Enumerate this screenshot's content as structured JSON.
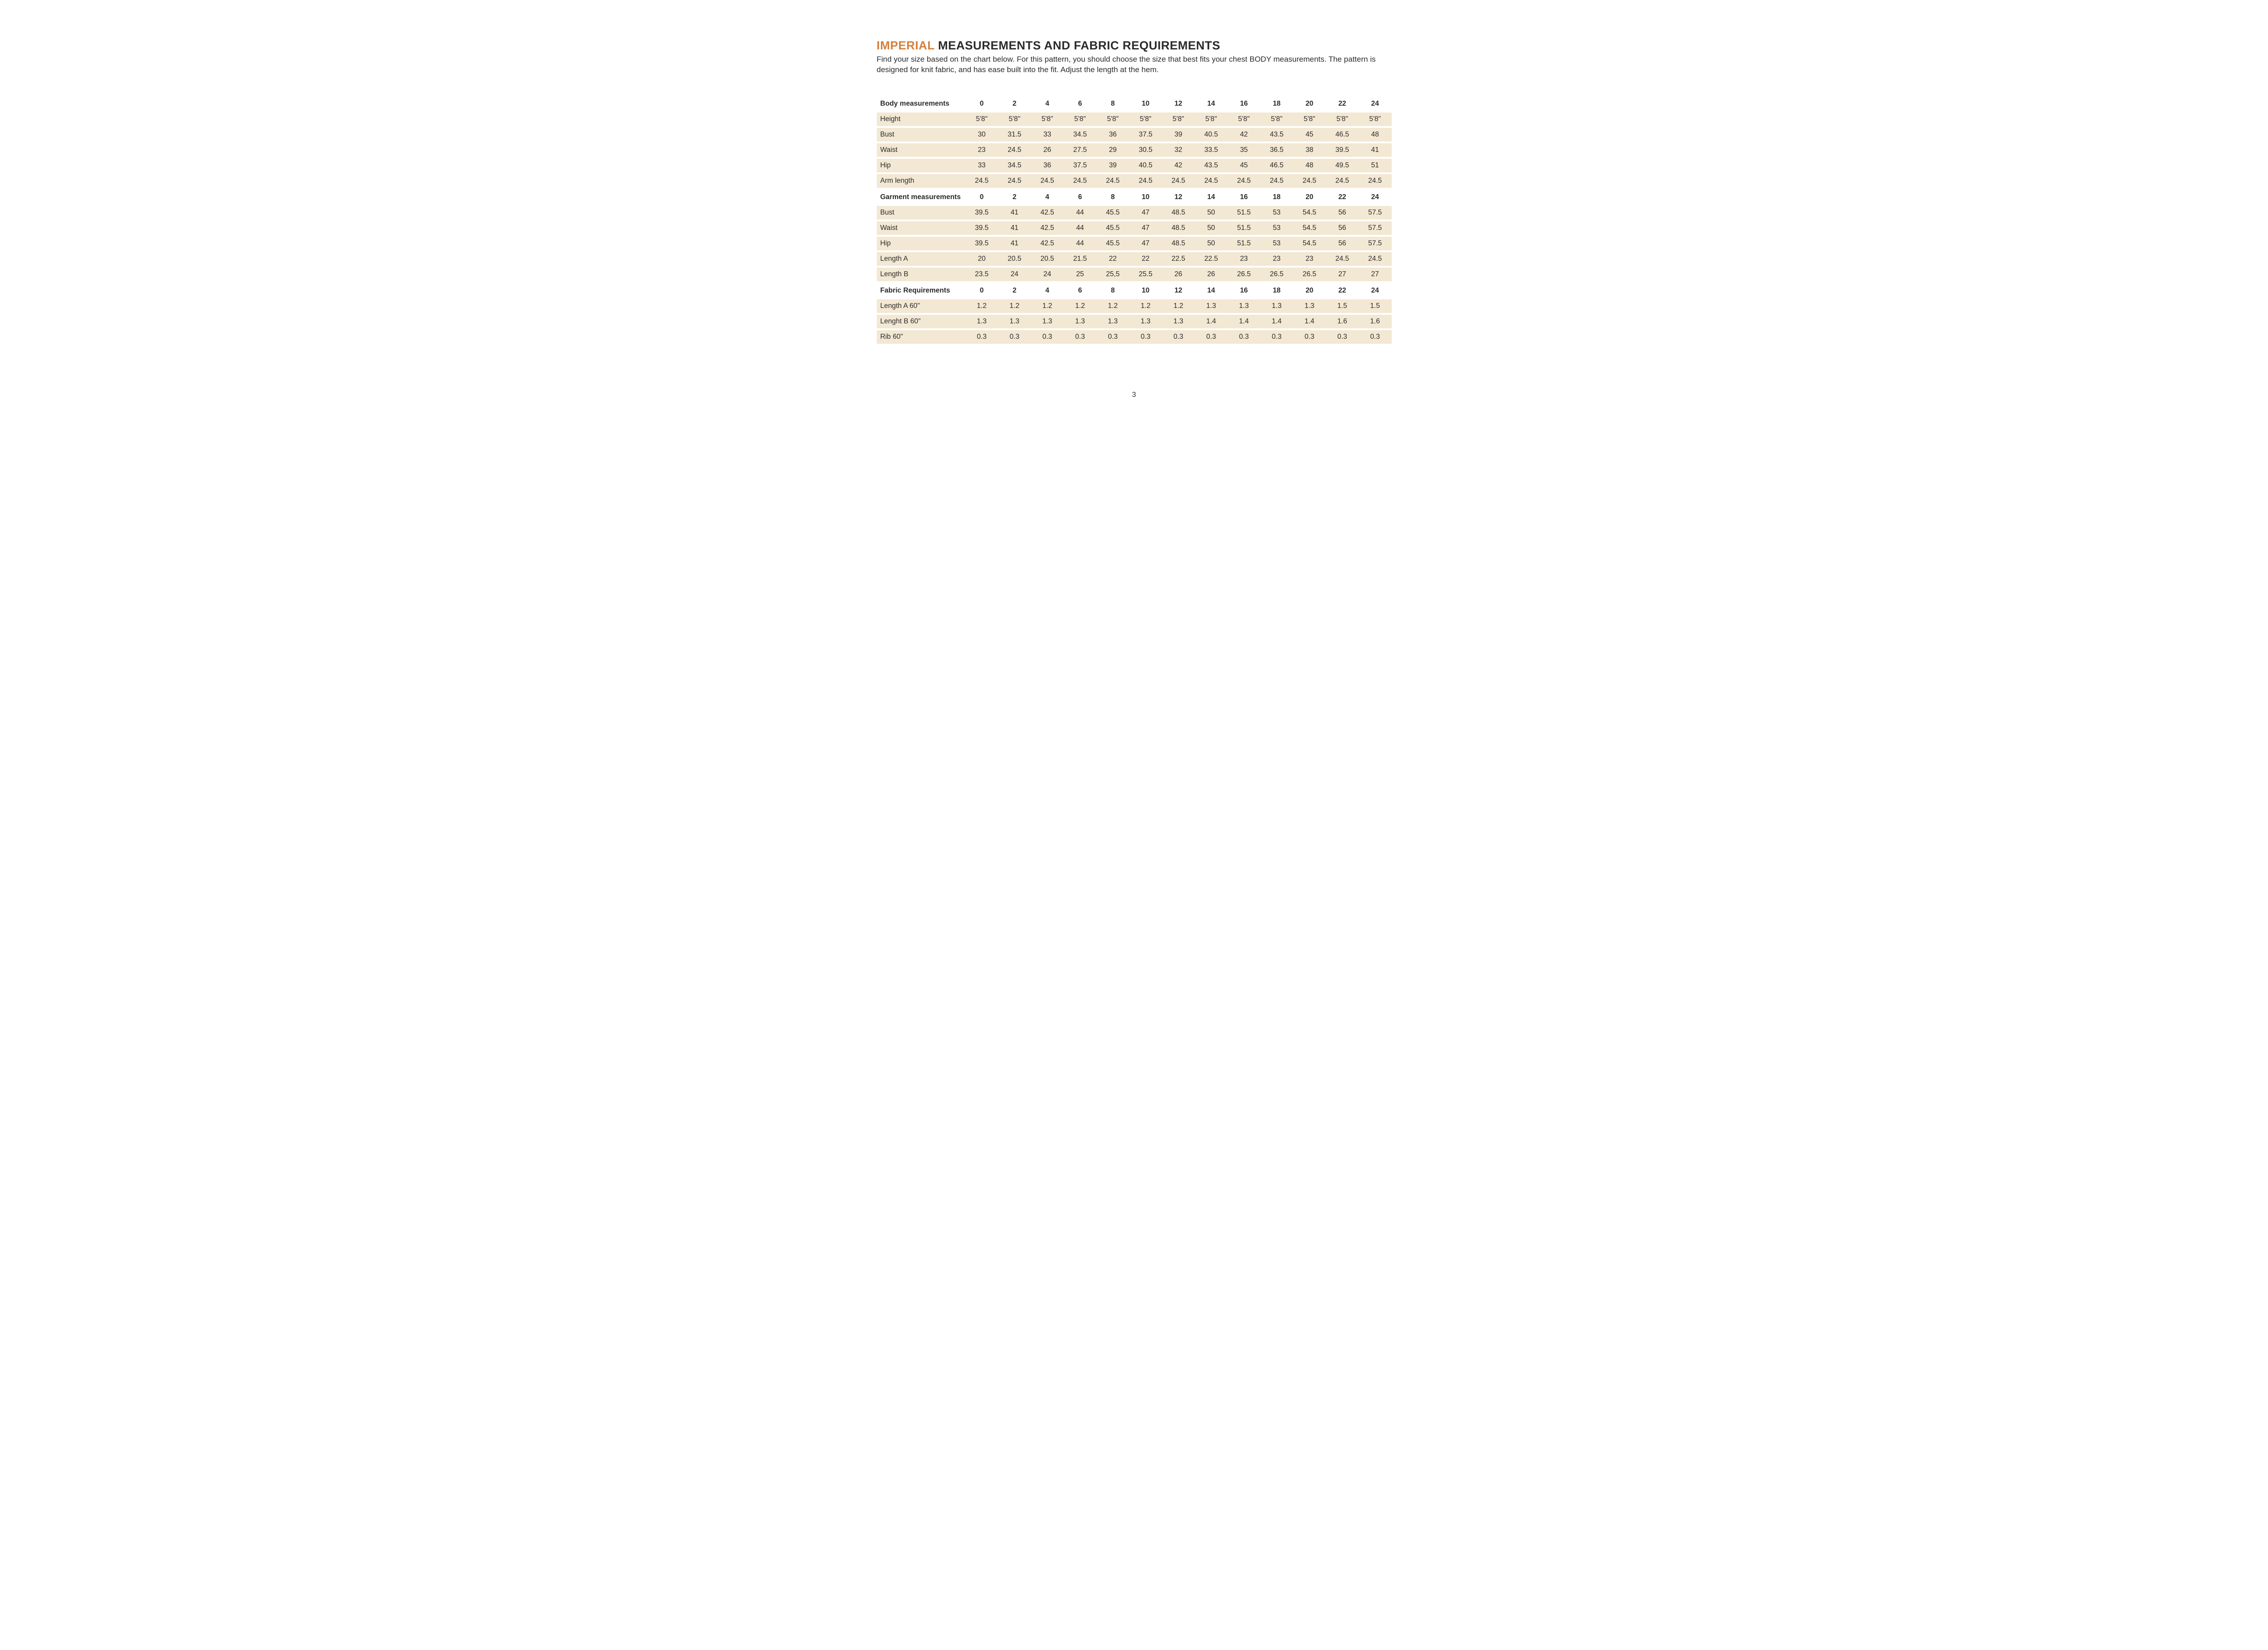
{
  "title_accent": "IMPERIAL",
  "title_rest": " MEASUREMENTS AND FABRIC REQUIREMENTS",
  "intro": "Find your size based on the chart below. For this pattern, you should choose the size that best fits your chest BODY measurements. The pattern is designed for knit fabric, and has ease built into the fit. Adjust the length at the hem.",
  "page_number": "3",
  "colors": {
    "accent": "#d6803b",
    "row_bg": "#f3e8d3",
    "text": "#2b2b2b",
    "background": "#ffffff"
  },
  "sizes": [
    "0",
    "2",
    "4",
    "6",
    "8",
    "10",
    "12",
    "14",
    "16",
    "18",
    "20",
    "22",
    "24"
  ],
  "sections": [
    {
      "label": "Body measurements",
      "rows": [
        {
          "label": "Height",
          "values": [
            "5'8\"",
            "5'8\"",
            "5'8\"",
            "5'8\"",
            "5'8\"",
            "5'8\"",
            "5'8\"",
            "5'8\"",
            "5'8\"",
            "5'8\"",
            "5'8\"",
            "5'8\"",
            "5'8\""
          ]
        },
        {
          "label": "Bust",
          "values": [
            "30",
            "31.5",
            "33",
            "34.5",
            "36",
            "37.5",
            "39",
            "40.5",
            "42",
            "43.5",
            "45",
            "46.5",
            "48"
          ]
        },
        {
          "label": "Waist",
          "values": [
            "23",
            "24.5",
            "26",
            "27.5",
            "29",
            "30.5",
            "32",
            "33.5",
            "35",
            "36.5",
            "38",
            "39.5",
            "41"
          ]
        },
        {
          "label": "Hip",
          "values": [
            "33",
            "34.5",
            "36",
            "37.5",
            "39",
            "40.5",
            "42",
            "43.5",
            "45",
            "46.5",
            "48",
            "49.5",
            "51"
          ]
        },
        {
          "label": "Arm length",
          "values": [
            "24.5",
            "24.5",
            "24.5",
            "24.5",
            "24.5",
            "24.5",
            "24.5",
            "24.5",
            "24.5",
            "24.5",
            "24.5",
            "24.5",
            "24.5"
          ]
        }
      ]
    },
    {
      "label": "Garment measurements",
      "rows": [
        {
          "label": "Bust",
          "values": [
            "39.5",
            "41",
            "42.5",
            "44",
            "45.5",
            "47",
            "48.5",
            "50",
            "51.5",
            "53",
            "54.5",
            "56",
            "57.5"
          ]
        },
        {
          "label": "Waist",
          "values": [
            "39.5",
            "41",
            "42.5",
            "44",
            "45.5",
            "47",
            "48.5",
            "50",
            "51.5",
            "53",
            "54.5",
            "56",
            "57.5"
          ]
        },
        {
          "label": "Hip",
          "values": [
            "39.5",
            "41",
            "42.5",
            "44",
            "45.5",
            "47",
            "48.5",
            "50",
            "51.5",
            "53",
            "54.5",
            "56",
            "57.5"
          ]
        },
        {
          "label": "Length A",
          "values": [
            "20",
            "20.5",
            "20.5",
            "21.5",
            "22",
            "22",
            "22.5",
            "22.5",
            "23",
            "23",
            "23",
            "24.5",
            "24.5"
          ]
        },
        {
          "label": "Length B",
          "values": [
            "23.5",
            "24",
            "24",
            "25",
            "25,5",
            "25.5",
            "26",
            "26",
            "26.5",
            "26.5",
            "26.5",
            "27",
            "27"
          ]
        }
      ]
    },
    {
      "label": "Fabric Requirements",
      "rows": [
        {
          "label": "Length A 60\"",
          "values": [
            "1.2",
            "1.2",
            "1.2",
            "1.2",
            "1.2",
            "1.2",
            "1.2",
            "1.3",
            "1.3",
            "1.3",
            "1.3",
            "1.5",
            "1.5"
          ]
        },
        {
          "label": "Lenght B 60\"",
          "values": [
            "1.3",
            "1.3",
            "1.3",
            "1.3",
            "1.3",
            "1.3",
            "1.3",
            "1.4",
            "1.4",
            "1.4",
            "1.4",
            "1.6",
            "1.6"
          ]
        },
        {
          "label": "Rib 60\"",
          "values": [
            "0.3",
            "0.3",
            "0.3",
            "0.3",
            "0.3",
            "0.3",
            "0.3",
            "0.3",
            "0.3",
            "0.3",
            "0.3",
            "0.3",
            "0.3"
          ]
        }
      ]
    }
  ]
}
